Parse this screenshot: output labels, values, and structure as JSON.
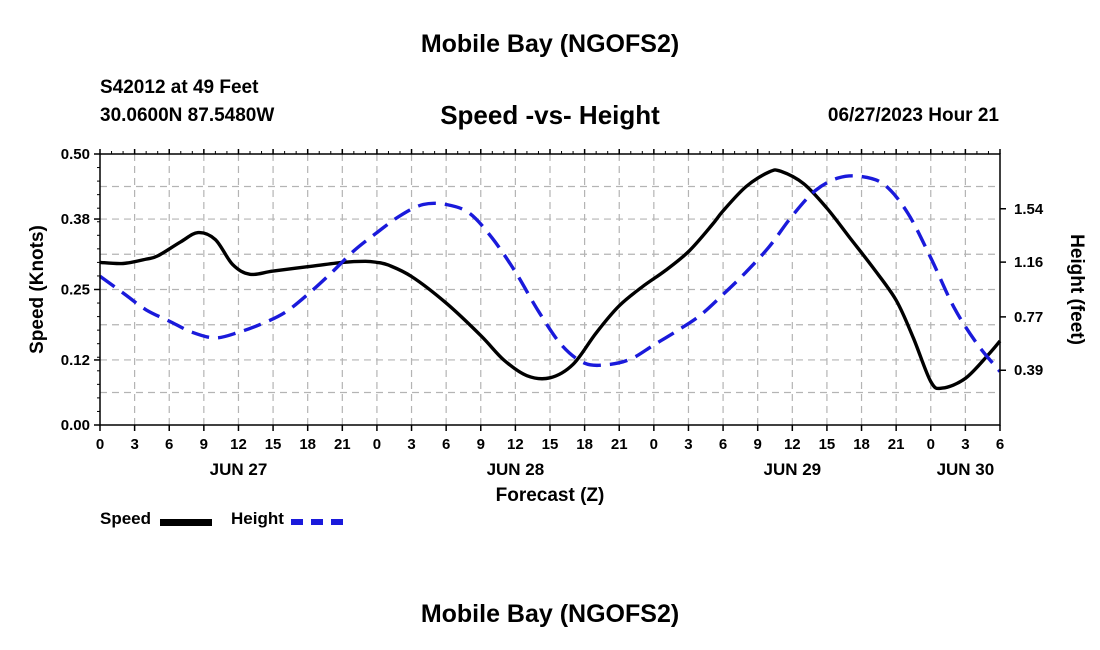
{
  "header": {
    "title": "Mobile Bay (NGOFS2)",
    "station": "S42012 at 49 Feet",
    "coords": "30.0600N  87.5480W",
    "subtitle": "Speed -vs- Height",
    "datetime": "06/27/2023 Hour 21"
  },
  "footer": {
    "title": "Mobile Bay (NGOFS2)"
  },
  "legend": {
    "speed_label": "Speed",
    "height_label": "Height"
  },
  "colors": {
    "speed": "#000000",
    "height": "#1a1adb",
    "grid": "#b4b4b4"
  },
  "chart_data": {
    "type": "line",
    "title": "Speed -vs- Height",
    "xlabel": "Forecast (Z)",
    "ylabel_left": "Speed (Knots)",
    "ylabel_right": "Height (feet)",
    "x_range_hours": [
      0,
      78
    ],
    "x_start": "06/27/2023 00Z",
    "x_tick_labels": [
      "0",
      "3",
      "6",
      "9",
      "12",
      "15",
      "18",
      "21",
      "0",
      "3",
      "6",
      "9",
      "12",
      "15",
      "18",
      "21",
      "0",
      "3",
      "6",
      "9",
      "12",
      "15",
      "18",
      "21",
      "0",
      "3",
      "6"
    ],
    "date_labels": [
      {
        "label": "JUN 27",
        "hour": 12
      },
      {
        "label": "JUN 28",
        "hour": 36
      },
      {
        "label": "JUN 29",
        "hour": 60
      },
      {
        "label": "JUN 30",
        "hour": 75
      }
    ],
    "ylim_left": [
      0,
      0.5
    ],
    "yticks_left": [
      0.0,
      0.12,
      0.25,
      0.38,
      0.5
    ],
    "ytick_labels_left": [
      "0.00",
      "0.12",
      "0.25",
      "0.38",
      "0.50"
    ],
    "ylim_right": [
      0.0,
      1.93
    ],
    "yticks_right": [
      0.39,
      0.77,
      1.16,
      1.54
    ],
    "ytick_labels_right": [
      "0.39",
      "0.77",
      "1.16",
      "1.54"
    ],
    "grid": true,
    "series": [
      {
        "name": "Speed",
        "axis": "left",
        "style": "solid",
        "x": [
          0,
          2,
          4,
          5,
          7,
          8.5,
          10,
          11.5,
          13,
          15,
          18,
          21,
          23,
          24,
          25,
          27,
          30,
          33,
          35,
          37,
          39,
          41,
          43,
          45,
          47,
          49,
          51,
          53,
          54,
          56,
          58,
          59,
          61,
          63,
          65,
          67,
          69,
          70.5,
          72,
          73,
          75,
          77,
          78
        ],
        "y": [
          0.3,
          0.298,
          0.306,
          0.312,
          0.338,
          0.355,
          0.342,
          0.296,
          0.278,
          0.284,
          0.292,
          0.3,
          0.302,
          0.3,
          0.295,
          0.274,
          0.225,
          0.165,
          0.12,
          0.091,
          0.087,
          0.112,
          0.17,
          0.22,
          0.255,
          0.285,
          0.32,
          0.368,
          0.395,
          0.44,
          0.467,
          0.468,
          0.445,
          0.4,
          0.345,
          0.29,
          0.23,
          0.16,
          0.08,
          0.068,
          0.086,
          0.13,
          0.155
        ]
      },
      {
        "name": "Height",
        "axis": "right",
        "style": "dashed",
        "x": [
          0,
          2,
          4,
          6,
          8,
          10,
          12,
          14,
          16,
          18,
          20,
          22,
          24,
          26,
          28,
          30,
          32,
          34,
          36,
          38,
          40,
          42,
          44,
          46,
          48,
          50,
          52,
          54,
          56,
          58,
          60,
          62,
          64,
          66,
          68,
          70,
          72,
          74,
          76,
          78
        ],
        "y": [
          1.06,
          0.94,
          0.82,
          0.74,
          0.66,
          0.62,
          0.66,
          0.72,
          0.8,
          0.93,
          1.08,
          1.24,
          1.37,
          1.49,
          1.57,
          1.57,
          1.51,
          1.33,
          1.09,
          0.81,
          0.57,
          0.44,
          0.43,
          0.47,
          0.57,
          0.67,
          0.78,
          0.93,
          1.09,
          1.27,
          1.49,
          1.67,
          1.76,
          1.77,
          1.71,
          1.51,
          1.19,
          0.84,
          0.58,
          0.38
        ]
      }
    ]
  }
}
